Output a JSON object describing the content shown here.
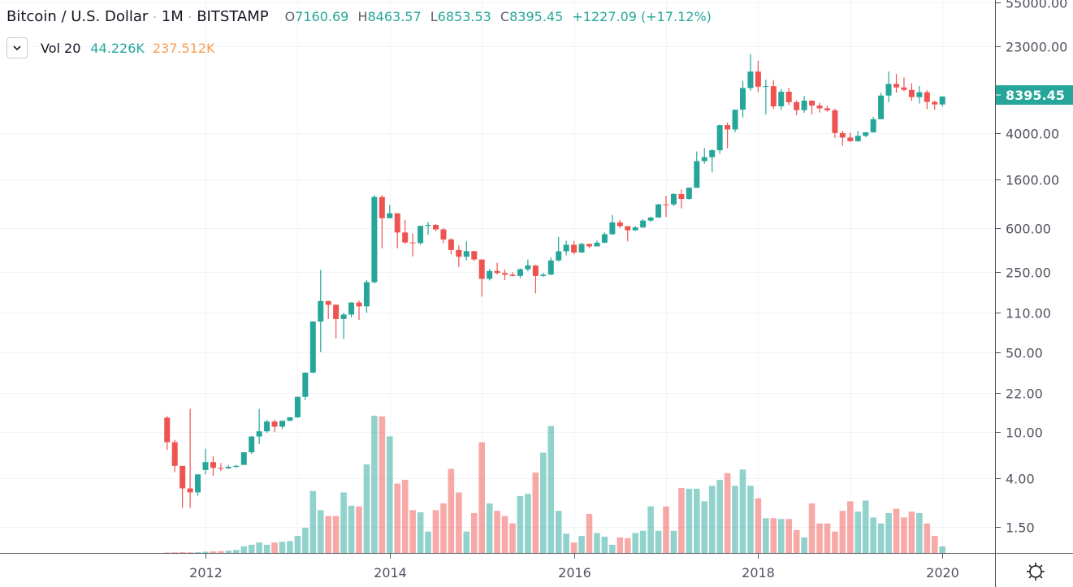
{
  "legend": {
    "title": "Bitcoin / U.S. Dollar",
    "interval": "1M",
    "exchange": "BITSTAMP",
    "sep": "·",
    "o_label": "O",
    "o": "7160.69",
    "h_label": "H",
    "h": "8463.57",
    "l_label": "L",
    "l": "6853.53",
    "c_label": "C",
    "c": "8395.45",
    "change": "+1227.09 (+17.12%)"
  },
  "volume_legend": {
    "label": "Vol 20",
    "value": "44.226K",
    "ma": "237.512K"
  },
  "colors": {
    "up": "#26a69a",
    "down": "#ef5350",
    "ma": "#f79e4f"
  },
  "chart_data": {
    "type": "candlestick",
    "scale": "log",
    "ylim": [
      1.2,
      58000
    ],
    "start": "2011-08",
    "y_ticks": [
      "55000.00",
      "23000.00",
      "4000.00",
      "1600.00",
      "600.00",
      "250.00",
      "110.00",
      "50.00",
      "22.00",
      "10.00",
      "4.00",
      "1.50"
    ],
    "x_ticks": [
      "2012",
      "2014",
      "2016",
      "2018",
      "2020"
    ],
    "last_price": "8395.45",
    "ohlc": [
      [
        13.4,
        13.9,
        7,
        8.2
      ],
      [
        8.2,
        8.6,
        4.5,
        5.1
      ],
      [
        5.1,
        5.1,
        2.2,
        3.25
      ],
      [
        3.25,
        16,
        2.2,
        3
      ],
      [
        3,
        4.3,
        2.8,
        4.3
      ],
      [
        4.7,
        7.2,
        4.3,
        5.5
      ],
      [
        5.5,
        6.2,
        4.2,
        4.9
      ],
      [
        4.9,
        5.4,
        4.6,
        4.85
      ],
      [
        4.85,
        5.2,
        4.8,
        5.0
      ],
      [
        5.0,
        5.2,
        4.9,
        5.1
      ],
      [
        5.2,
        6.7,
        5.2,
        6.7
      ],
      [
        6.7,
        9.3,
        6.5,
        9.2
      ],
      [
        9.2,
        16,
        7.9,
        10.2
      ],
      [
        10.2,
        12.8,
        9.9,
        12.4
      ],
      [
        12.4,
        12.9,
        10,
        11.2
      ],
      [
        11.2,
        12.6,
        10.7,
        12.6
      ],
      [
        12.6,
        13.6,
        12.5,
        13.5
      ],
      [
        13.5,
        20.4,
        13.3,
        20.4
      ],
      [
        20.4,
        33.3,
        19.1,
        33.1
      ],
      [
        33.1,
        93,
        32.8,
        92.2
      ],
      [
        92.2,
        260,
        50,
        139
      ],
      [
        139,
        140,
        97,
        129
      ],
      [
        129,
        130,
        66,
        97
      ],
      [
        97,
        110,
        65,
        106
      ],
      [
        106,
        136,
        100,
        135
      ],
      [
        135,
        140,
        95,
        125
      ],
      [
        125,
        212,
        110,
        203
      ],
      [
        203,
        1163,
        197,
        1120
      ],
      [
        1120,
        1163,
        400,
        732
      ],
      [
        732,
        955,
        731,
        808
      ],
      [
        808,
        800,
        400,
        550
      ],
      [
        550,
        710,
        440,
        450
      ],
      [
        450,
        540,
        340,
        445
      ],
      [
        445,
        630,
        430,
        628
      ],
      [
        628,
        680,
        525,
        640
      ],
      [
        640,
        650,
        565,
        585
      ],
      [
        585,
        600,
        445,
        478
      ],
      [
        478,
        490,
        355,
        387
      ],
      [
        387,
        423,
        275,
        338
      ],
      [
        338,
        460,
        315,
        378
      ],
      [
        378,
        380,
        310,
        320
      ],
      [
        320,
        320,
        152,
        217
      ],
      [
        217,
        265,
        210,
        254
      ],
      [
        254,
        300,
        237,
        244
      ],
      [
        244,
        262,
        212,
        236
      ],
      [
        236,
        248,
        228,
        230
      ],
      [
        230,
        268,
        220,
        263
      ],
      [
        263,
        320,
        252,
        284
      ],
      [
        284,
        286,
        162,
        230
      ],
      [
        230,
        245,
        225,
        236
      ],
      [
        236,
        333,
        235,
        314
      ],
      [
        314,
        502,
        306,
        377
      ],
      [
        377,
        467,
        347,
        430
      ],
      [
        430,
        462,
        355,
        368
      ],
      [
        368,
        447,
        365,
        437
      ],
      [
        437,
        440,
        401,
        416
      ],
      [
        416,
        467,
        416,
        448
      ],
      [
        448,
        550,
        443,
        531
      ],
      [
        531,
        780,
        525,
        673
      ],
      [
        673,
        706,
        603,
        624
      ],
      [
        624,
        624,
        460,
        575
      ],
      [
        575,
        627,
        566,
        608
      ],
      [
        608,
        720,
        603,
        698
      ],
      [
        698,
        754,
        677,
        742
      ],
      [
        742,
        975,
        742,
        966
      ],
      [
        966,
        1150,
        750,
        965
      ],
      [
        965,
        1210,
        930,
        1190
      ],
      [
        1190,
        1300,
        890,
        1078
      ],
      [
        1078,
        1360,
        1060,
        1348
      ],
      [
        1348,
        2790,
        1340,
        2300
      ],
      [
        2300,
        2990,
        2180,
        2490
      ],
      [
        2490,
        2930,
        1830,
        2860
      ],
      [
        2860,
        4770,
        2670,
        4730
      ],
      [
        4730,
        4980,
        2970,
        4340
      ],
      [
        4340,
        6450,
        4110,
        6450
      ],
      [
        6450,
        11500,
        5510,
        9950
      ],
      [
        9950,
        19666,
        9430,
        13850
      ],
      [
        13850,
        17170,
        9200,
        10220
      ],
      [
        10220,
        11790,
        5870,
        10330
      ],
      [
        10330,
        11700,
        6580,
        6900
      ],
      [
        6900,
        9760,
        6430,
        9240
      ],
      [
        9240,
        9990,
        7030,
        7500
      ],
      [
        7500,
        7770,
        5780,
        6390
      ],
      [
        6390,
        8500,
        6070,
        7730
      ],
      [
        7730,
        7760,
        5880,
        7010
      ],
      [
        7010,
        7400,
        6100,
        6630
      ],
      [
        6630,
        7000,
        6200,
        6370
      ],
      [
        6370,
        6590,
        3650,
        4040
      ],
      [
        4040,
        4230,
        3120,
        3690
      ],
      [
        3690,
        4080,
        3380,
        3430
      ],
      [
        3430,
        4210,
        3390,
        3820
      ],
      [
        3820,
        4100,
        3720,
        4100
      ],
      [
        4100,
        5600,
        4060,
        5330
      ],
      [
        5330,
        9070,
        5320,
        8560
      ],
      [
        8560,
        13880,
        7480,
        10820
      ],
      [
        10820,
        13190,
        9080,
        10080
      ],
      [
        10080,
        12330,
        9320,
        9590
      ],
      [
        9590,
        10950,
        7710,
        8300
      ],
      [
        8300,
        10370,
        7300,
        9150
      ],
      [
        9150,
        9520,
        6520,
        7540
      ],
      [
        7540,
        7750,
        6430,
        7160
      ],
      [
        7160.69,
        8463.57,
        6853.53,
        8395.45
      ]
    ],
    "volume_k": [
      3,
      4,
      5,
      4,
      5,
      8,
      10,
      12,
      15,
      20,
      45,
      55,
      70,
      55,
      70,
      75,
      80,
      115,
      170,
      420,
      290,
      250,
      250,
      410,
      320,
      315,
      600,
      930,
      925,
      790,
      470,
      495,
      290,
      275,
      145,
      290,
      335,
      570,
      410,
      145,
      270,
      750,
      335,
      285,
      250,
      200,
      385,
      400,
      545,
      680,
      860,
      285,
      130,
      70,
      115,
      265,
      135,
      110,
      55,
      105,
      100,
      135,
      150,
      315,
      150,
      315,
      150,
      440,
      435,
      435,
      350,
      455,
      495,
      540,
      455,
      565,
      455,
      370,
      235,
      235,
      230,
      230,
      155,
      105,
      335,
      200,
      200,
      145,
      285,
      350,
      280,
      355,
      240,
      200,
      270,
      300,
      240,
      280,
      270,
      200,
      115,
      44.226
    ]
  }
}
